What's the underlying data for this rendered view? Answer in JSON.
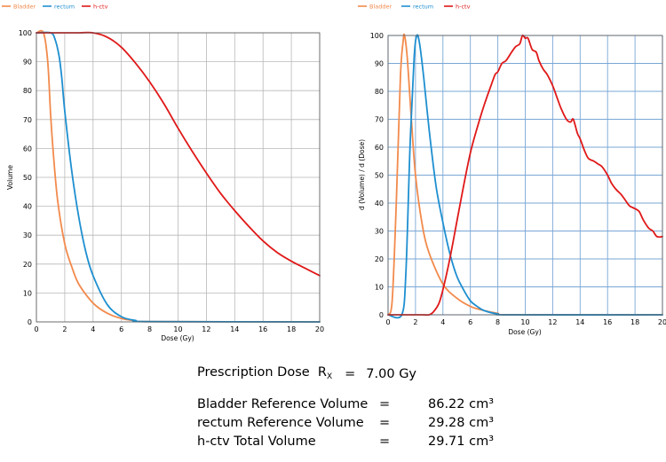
{
  "colors": {
    "bladder": "#f28a4c",
    "rectum": "#1e8fd0",
    "hctv": "#e01818"
  },
  "legend": [
    "Bladder",
    "rectum",
    "h-ctv"
  ],
  "chart_data": [
    {
      "type": "line",
      "title": "",
      "xlabel": "Dose (Gy)",
      "ylabel": "Volume",
      "xlim": [
        0,
        20
      ],
      "ylim": [
        0,
        100
      ],
      "xticks": [
        0,
        2,
        4,
        6,
        8,
        10,
        12,
        14,
        16,
        18,
        20
      ],
      "yticks": [
        0,
        10,
        20,
        30,
        40,
        50,
        60,
        70,
        80,
        90,
        100
      ],
      "series": [
        {
          "name": "Bladder",
          "color_key": "bladder",
          "x": [
            0,
            0.5,
            0.8,
            1.0,
            1.2,
            1.5,
            2.0,
            2.5,
            3.0,
            4.0,
            5.0,
            6.0,
            7.0,
            8.0,
            20.0
          ],
          "y": [
            100,
            100,
            90,
            72,
            58,
            42,
            27,
            19,
            13,
            6.5,
            3,
            1.2,
            0.4,
            0.1,
            0
          ]
        },
        {
          "name": "rectum",
          "color_key": "rectum",
          "x": [
            0,
            1.0,
            1.3,
            1.6,
            1.8,
            2.0,
            2.5,
            3.0,
            3.5,
            4.0,
            5.0,
            6.0,
            7.0,
            8.0,
            20.0
          ],
          "y": [
            100,
            100,
            98,
            92,
            84,
            73,
            52,
            36,
            24,
            16,
            6,
            1.8,
            0.5,
            0.1,
            0
          ]
        },
        {
          "name": "h-ctv",
          "color_key": "hctv",
          "x": [
            0,
            2,
            3,
            4,
            5,
            6,
            7,
            8,
            9,
            10,
            11,
            12,
            13,
            14,
            15,
            16,
            17,
            18,
            19,
            20
          ],
          "y": [
            100,
            100,
            100,
            100,
            98.5,
            95,
            89.5,
            83,
            75.5,
            67,
            59,
            51.5,
            44.5,
            38.5,
            33,
            28,
            24,
            21,
            18.5,
            16
          ]
        }
      ]
    },
    {
      "type": "line",
      "title": "",
      "xlabel": "Dose (Gy)",
      "ylabel": "d (Volume) / d (Dose)",
      "xlim": [
        0,
        20
      ],
      "ylim": [
        0,
        100
      ],
      "xticks": [
        0,
        2,
        4,
        6,
        8,
        10,
        12,
        14,
        16,
        18,
        20
      ],
      "yticks": [
        0,
        10,
        20,
        30,
        40,
        50,
        60,
        70,
        80,
        90,
        100
      ],
      "series": [
        {
          "name": "Bladder",
          "color_key": "bladder",
          "x": [
            0,
            0.3,
            0.6,
            0.9,
            1.1,
            1.2,
            1.4,
            1.7,
            2.0,
            2.5,
            3.0,
            4.0,
            5.0,
            6.0,
            7.0,
            8.0,
            9.0,
            20.0
          ],
          "y": [
            0,
            5,
            40,
            85,
            98,
            100,
            92,
            70,
            50,
            32,
            22,
            11,
            6,
            3,
            1.5,
            0.5,
            0,
            0
          ]
        },
        {
          "name": "rectum",
          "color_key": "rectum",
          "x": [
            0,
            1.0,
            1.3,
            1.6,
            1.9,
            2.1,
            2.3,
            2.6,
            3.0,
            3.5,
            4.0,
            4.5,
            5.0,
            5.5,
            6.0,
            6.5,
            7.0,
            8.0,
            9.0,
            20.0
          ],
          "y": [
            0,
            0,
            15,
            60,
            92,
            100,
            97,
            85,
            66,
            46,
            33,
            22,
            14,
            9,
            5,
            3,
            1.5,
            0.3,
            0,
            0
          ]
        },
        {
          "name": "h-ctv",
          "color_key": "hctv",
          "x": [
            0,
            2.5,
            3.0,
            3.3,
            3.7,
            4.0,
            4.5,
            5.0,
            5.5,
            6.0,
            6.5,
            7.0,
            7.5,
            7.8,
            8.0,
            8.3,
            8.6,
            9.0,
            9.3,
            9.6,
            9.8,
            10.0,
            10.2,
            10.5,
            10.8,
            11.0,
            11.3,
            11.6,
            12.0,
            12.3,
            12.6,
            13.0,
            13.3,
            13.5,
            13.8,
            14.0,
            14.3,
            14.6,
            15.0,
            15.3,
            15.6,
            16.0,
            16.3,
            16.6,
            17.0,
            17.3,
            17.6,
            18.0,
            18.3,
            18.6,
            19.0,
            19.3,
            19.6,
            20.0
          ],
          "y": [
            0,
            0,
            0,
            1,
            4,
            9,
            20,
            33,
            46,
            58,
            67,
            75,
            82,
            86,
            87,
            90,
            91,
            94,
            96,
            97,
            100,
            99,
            99,
            95,
            94,
            91,
            88,
            86,
            82,
            78,
            74,
            70,
            69,
            70,
            65,
            63,
            59,
            56,
            55,
            54,
            53,
            50,
            47,
            45,
            43,
            41,
            39,
            38,
            37,
            34,
            31,
            30,
            28,
            28
          ]
        }
      ]
    }
  ],
  "summary": {
    "rx_label": "Prescription Dose",
    "rx_symbol": "R",
    "rx_sub": "X",
    "rx_eq": "=",
    "rx_value": "7.00 Gy",
    "rows": [
      {
        "label": "Bladder Reference Volume",
        "eq": "=",
        "value": "86.22 cm³"
      },
      {
        "label": "rectum Reference Volume",
        "eq": "=",
        "value": "29.28 cm³"
      },
      {
        "label": "h-ctv Total Volume",
        "eq": "=",
        "value": "29.71 cm³"
      }
    ]
  }
}
